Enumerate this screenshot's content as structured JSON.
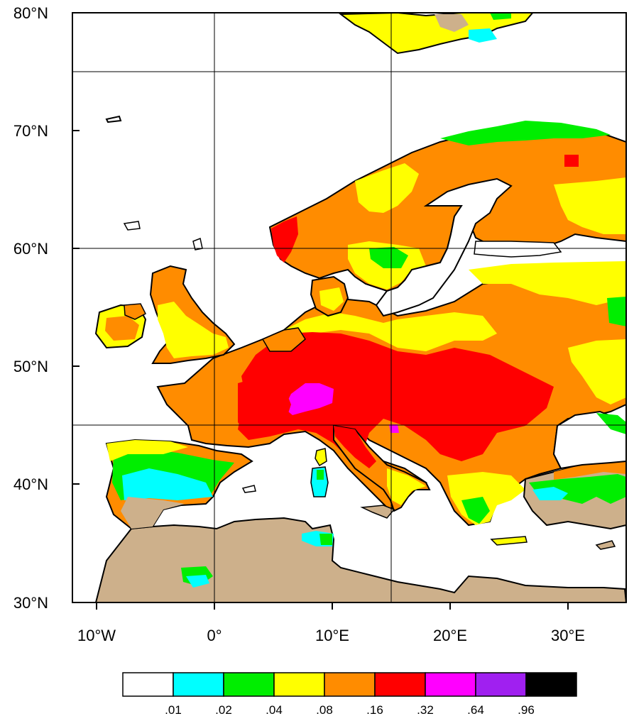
{
  "map": {
    "lat_labels": [
      "80°N",
      "70°N",
      "60°N",
      "50°N",
      "40°N",
      "30°N"
    ],
    "lon_labels": [
      "10°W",
      "0°",
      "10°E",
      "20°E",
      "30°E"
    ],
    "colors": {
      "land_dry": "#cdb08b",
      "sea": "#ffffff",
      "coast": "#000000"
    }
  },
  "colorbar": {
    "colors": [
      "#ffffff",
      "#00ffff",
      "#00ee00",
      "#ffff00",
      "#ff8c00",
      "#ff0000",
      "#ff00ff",
      "#a020f0",
      "#000000"
    ],
    "labels": [
      ".01",
      ".02",
      ".04",
      ".08",
      ".16",
      ".32",
      ".64",
      ".96"
    ]
  }
}
